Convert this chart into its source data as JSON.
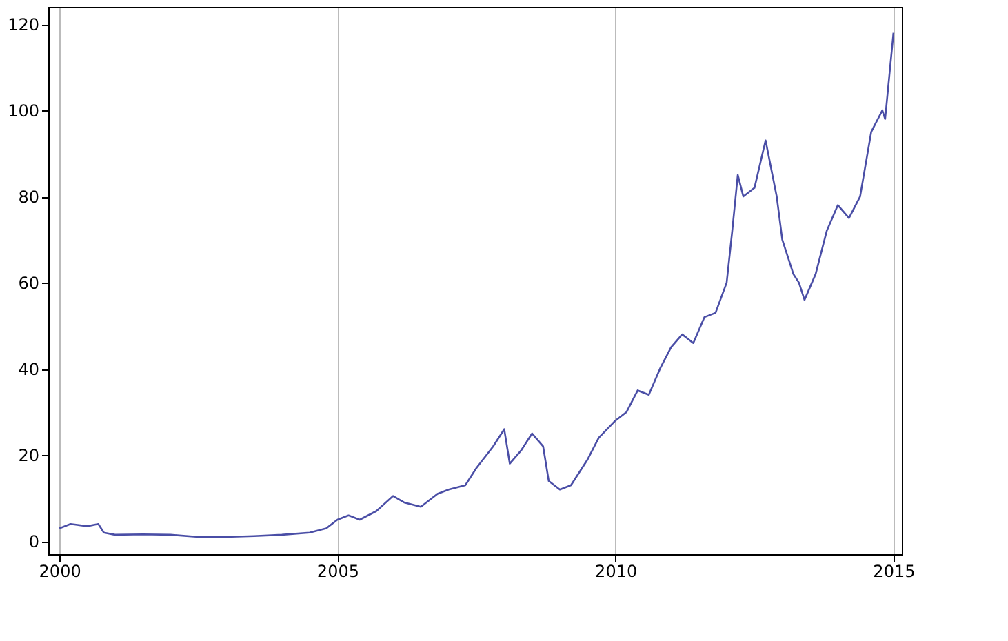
{
  "chart_data": {
    "type": "line",
    "xlim": [
      1999.8,
      2015.15
    ],
    "ylim": [
      -3,
      124
    ],
    "xticks": [
      2000,
      2005,
      2010,
      2015
    ],
    "yticks": [
      0,
      20,
      40,
      60,
      80,
      100,
      120
    ],
    "grid": "x",
    "series": [
      {
        "color": "#4a4ea6",
        "x": [
          2000.0,
          2000.2,
          2000.5,
          2000.7,
          2000.8,
          2001.0,
          2001.5,
          2002.0,
          2002.5,
          2003.0,
          2003.5,
          2004.0,
          2004.5,
          2004.8,
          2005.0,
          2005.2,
          2005.4,
          2005.7,
          2006.0,
          2006.2,
          2006.5,
          2006.8,
          2007.0,
          2007.3,
          2007.5,
          2007.8,
          2008.0,
          2008.1,
          2008.3,
          2008.5,
          2008.7,
          2008.8,
          2009.0,
          2009.2,
          2009.5,
          2009.7,
          2010.0,
          2010.2,
          2010.4,
          2010.6,
          2010.8,
          2011.0,
          2011.2,
          2011.4,
          2011.6,
          2011.8,
          2012.0,
          2012.1,
          2012.2,
          2012.3,
          2012.5,
          2012.7,
          2012.9,
          2013.0,
          2013.2,
          2013.3,
          2013.4,
          2013.6,
          2013.8,
          2014.0,
          2014.2,
          2014.4,
          2014.6,
          2014.8,
          2014.85,
          2015.0
        ],
        "values": [
          3,
          4,
          3.5,
          4,
          2,
          1.5,
          1.6,
          1.5,
          1,
          1,
          1.2,
          1.5,
          2,
          3,
          5,
          6,
          5,
          7,
          10.5,
          9,
          8,
          11,
          12,
          13,
          17,
          22,
          26,
          18,
          21,
          25,
          22,
          14,
          12,
          13,
          19,
          24,
          28,
          30,
          35,
          34,
          40,
          45,
          48,
          46,
          52,
          53,
          60,
          72,
          85,
          80,
          82,
          93,
          80,
          70,
          62,
          60,
          56,
          62,
          72,
          78,
          75,
          80,
          95,
          100,
          98,
          118
        ]
      }
    ]
  }
}
